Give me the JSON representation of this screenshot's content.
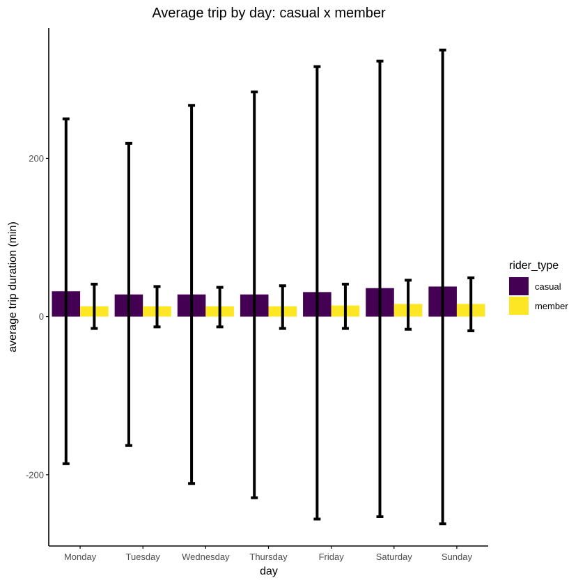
{
  "chart_data": {
    "type": "bar",
    "title": "Average trip by day: casual x member",
    "xlabel": "day",
    "ylabel": "average trip duration (min)",
    "categories": [
      "Monday",
      "Tuesday",
      "Wednesday",
      "Thursday",
      "Friday",
      "Saturday",
      "Sunday"
    ],
    "ylim": [
      -290,
      365
    ],
    "yticks": [
      -200,
      0,
      200
    ],
    "ytick_labels": [
      "-200",
      "0",
      "200"
    ],
    "grid": false,
    "legend_position": "right",
    "legend_title": "rider_type",
    "series": [
      {
        "name": "casual",
        "color": "#440154",
        "values": [
          32,
          28,
          28,
          28,
          31,
          36,
          38
        ],
        "error_low": [
          -186,
          -163,
          -211,
          -229,
          -256,
          -253,
          -262
        ],
        "error_high": [
          250,
          219,
          267,
          284,
          316,
          323,
          337
        ]
      },
      {
        "name": "member",
        "color": "#FDE725",
        "values": [
          13,
          13,
          13,
          13,
          14,
          16,
          16
        ],
        "error_low": [
          -15,
          -13,
          -13,
          -15,
          -15,
          -16,
          -18
        ],
        "error_high": [
          41,
          38,
          37,
          39,
          41,
          46,
          49
        ]
      }
    ]
  }
}
